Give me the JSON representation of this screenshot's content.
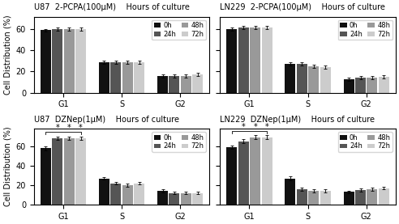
{
  "chart_data": [
    {
      "type": "bar",
      "title": "U87  2-PCPA(100μM)    Hours of culture",
      "y_label": "Cell Distribution (%)",
      "categories": [
        "G1",
        "S",
        "G2"
      ],
      "series": [
        {
          "name": "0h",
          "color": "#111111",
          "values": [
            59,
            29,
            16
          ],
          "errors": [
            1.5,
            1.5,
            1.5
          ]
        },
        {
          "name": "24h",
          "color": "#555555",
          "values": [
            60,
            29,
            16
          ],
          "errors": [
            1.5,
            1.5,
            1.5
          ]
        },
        {
          "name": "48h",
          "color": "#999999",
          "values": [
            60,
            29,
            16
          ],
          "errors": [
            1.5,
            1.5,
            1.5
          ]
        },
        {
          "name": "72h",
          "color": "#cccccc",
          "values": [
            60,
            29,
            17
          ],
          "errors": [
            1.5,
            1.5,
            1.5
          ]
        }
      ],
      "ylim": [
        0,
        72
      ],
      "yticks": [
        0,
        20,
        40,
        60
      ],
      "legend": "upper right"
    },
    {
      "type": "bar",
      "title": "LN229  2-PCPA(100μM)    Hours of culture",
      "categories": [
        "G1",
        "S",
        "G2"
      ],
      "series": [
        {
          "name": "0h",
          "color": "#111111",
          "values": [
            60,
            27,
            13
          ],
          "errors": [
            1.5,
            1.5,
            1.5
          ]
        },
        {
          "name": "24h",
          "color": "#555555",
          "values": [
            62,
            27,
            14
          ],
          "errors": [
            1.5,
            1.5,
            1.5
          ]
        },
        {
          "name": "48h",
          "color": "#999999",
          "values": [
            62,
            25,
            14
          ],
          "errors": [
            1.5,
            1.5,
            1.5
          ]
        },
        {
          "name": "72h",
          "color": "#cccccc",
          "values": [
            62,
            24,
            15
          ],
          "errors": [
            1.5,
            1.5,
            1.5
          ]
        }
      ],
      "ylim": [
        0,
        72
      ],
      "yticks": [
        0,
        20,
        40,
        60
      ],
      "legend": "upper right",
      "tick_labels": "x"
    },
    {
      "type": "bar",
      "title": "U87  DZNep(1μM)    Hours of culture",
      "y_label": "Cell Distribution (%)",
      "categories": [
        "G1",
        "S",
        "G2"
      ],
      "series": [
        {
          "name": "0h",
          "color": "#111111",
          "values": [
            58,
            27,
            14
          ],
          "errors": [
            2.0,
            1.5,
            1.5
          ]
        },
        {
          "name": "24h",
          "color": "#555555",
          "values": [
            68,
            22,
            12
          ],
          "errors": [
            2.0,
            1.5,
            1.5
          ]
        },
        {
          "name": "48h",
          "color": "#999999",
          "values": [
            68,
            20,
            12
          ],
          "errors": [
            2.0,
            1.5,
            1.5
          ]
        },
        {
          "name": "72h",
          "color": "#cccccc",
          "values": [
            68,
            22,
            12
          ],
          "errors": [
            2.0,
            1.5,
            1.5
          ]
        }
      ],
      "ylim": [
        0,
        78
      ],
      "yticks": [
        0,
        20,
        40,
        60
      ],
      "legend": "upper right",
      "annotations": [
        {
          "text": "*",
          "category": "G1",
          "series": "24h"
        },
        {
          "text": "*",
          "category": "G1",
          "series": "48h"
        },
        {
          "text": "*",
          "category": "G1",
          "series": "72h"
        }
      ]
    },
    {
      "type": "bar",
      "title": "LN229  DZNep(1μM)    Hours of culture",
      "categories": [
        "G1",
        "S",
        "G2"
      ],
      "series": [
        {
          "name": "0h",
          "color": "#111111",
          "values": [
            59,
            27,
            13
          ],
          "errors": [
            1.5,
            2.0,
            1.5
          ]
        },
        {
          "name": "24h",
          "color": "#555555",
          "values": [
            65,
            16,
            15
          ],
          "errors": [
            2.0,
            1.5,
            1.5
          ]
        },
        {
          "name": "48h",
          "color": "#999999",
          "values": [
            69,
            14,
            16
          ],
          "errors": [
            2.0,
            1.5,
            1.5
          ]
        },
        {
          "name": "72h",
          "color": "#cccccc",
          "values": [
            69,
            14,
            17
          ],
          "errors": [
            2.0,
            1.5,
            1.5
          ]
        }
      ],
      "ylim": [
        0,
        78
      ],
      "yticks": [
        0,
        20,
        40,
        60
      ],
      "legend": "upper right",
      "tick_labels": "x",
      "annotations": [
        {
          "text": "*",
          "category": "G1",
          "series": "24h"
        },
        {
          "text": "*",
          "category": "G1",
          "series": "48h"
        },
        {
          "text": "*",
          "category": "G1",
          "series": "72h"
        }
      ]
    }
  ]
}
